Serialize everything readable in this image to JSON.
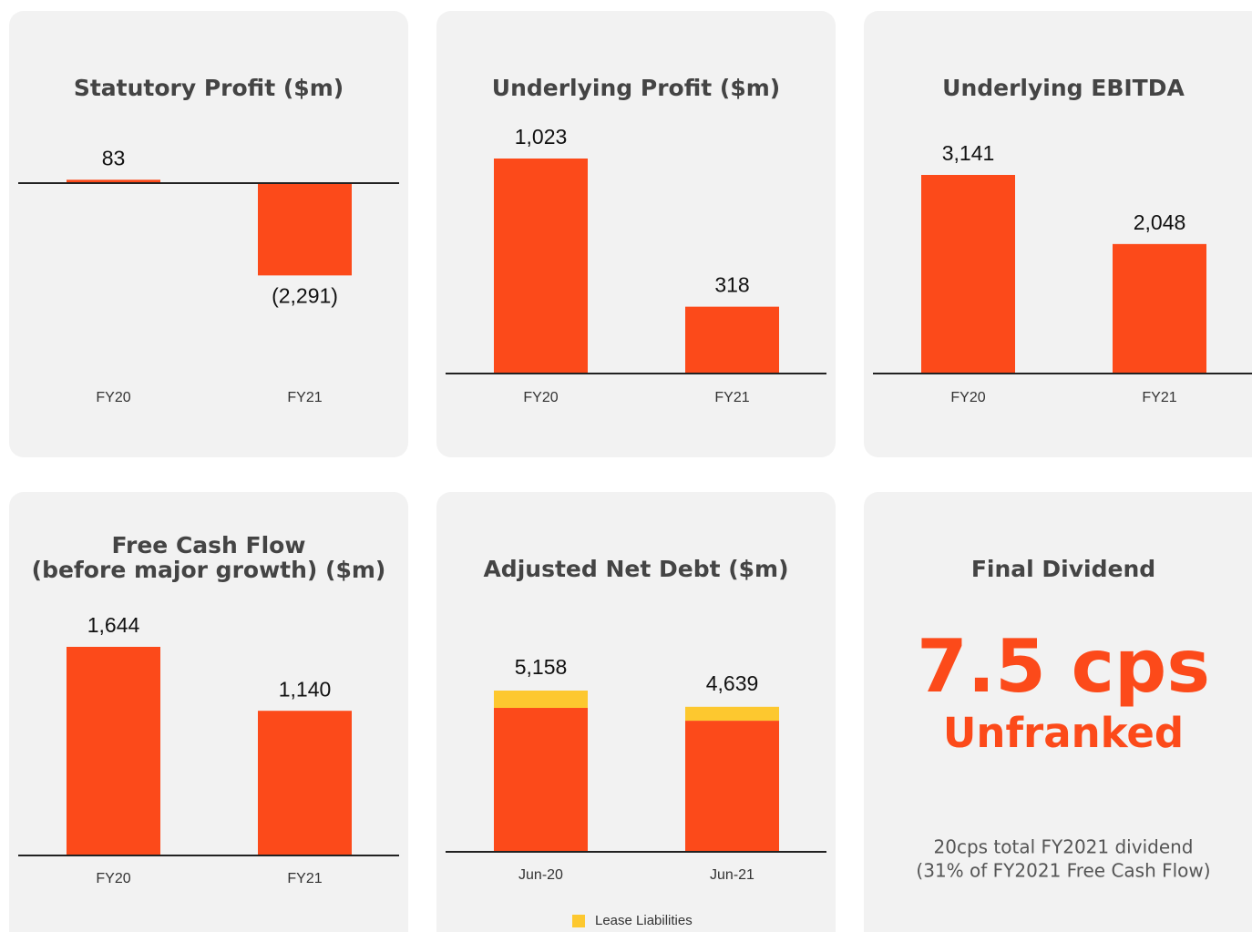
{
  "chart_data": [
    {
      "type": "bar",
      "title": "Statutory Profit ($m)",
      "categories": [
        "FY20",
        "FY21"
      ],
      "values": [
        83,
        -2291
      ],
      "value_labels": [
        "83",
        "(2,291)"
      ],
      "color": "#fc4a1a"
    },
    {
      "type": "bar",
      "title": "Underlying Profit ($m)",
      "categories": [
        "FY20",
        "FY21"
      ],
      "values": [
        1023,
        318
      ],
      "value_labels": [
        "1,023",
        "318"
      ],
      "color": "#fc4a1a"
    },
    {
      "type": "bar",
      "title": "Underlying EBITDA",
      "categories": [
        "FY20",
        "FY21"
      ],
      "values": [
        3141,
        2048
      ],
      "value_labels": [
        "3,141",
        "2,048"
      ],
      "color": "#fc4a1a"
    },
    {
      "type": "bar",
      "title": [
        "Free Cash Flow",
        "(before major growth) ($m)"
      ],
      "categories": [
        "FY20",
        "FY21"
      ],
      "values": [
        1644,
        1140
      ],
      "value_labels": [
        "1,644",
        "1,140"
      ],
      "color": "#fc4a1a"
    },
    {
      "type": "stacked_bar",
      "title": "Adjusted Net Debt ($m)",
      "categories": [
        "Jun-20",
        "Jun-21"
      ],
      "series": [
        {
          "color": "#fc4a1a",
          "values": [
            4604,
            4194
          ]
        },
        {
          "name": "Lease Liabilities",
          "color": "#fdc82f",
          "values": [
            554,
            445
          ]
        }
      ],
      "total_labels": [
        "5,158",
        "4,639"
      ]
    }
  ],
  "dividend": {
    "title": "Final Dividend",
    "headline": "7.5 cps",
    "subhead": "Unfranked",
    "note": [
      "20cps total FY2021 dividend",
      "(31% of FY2021 Free Cash Flow)"
    ]
  }
}
